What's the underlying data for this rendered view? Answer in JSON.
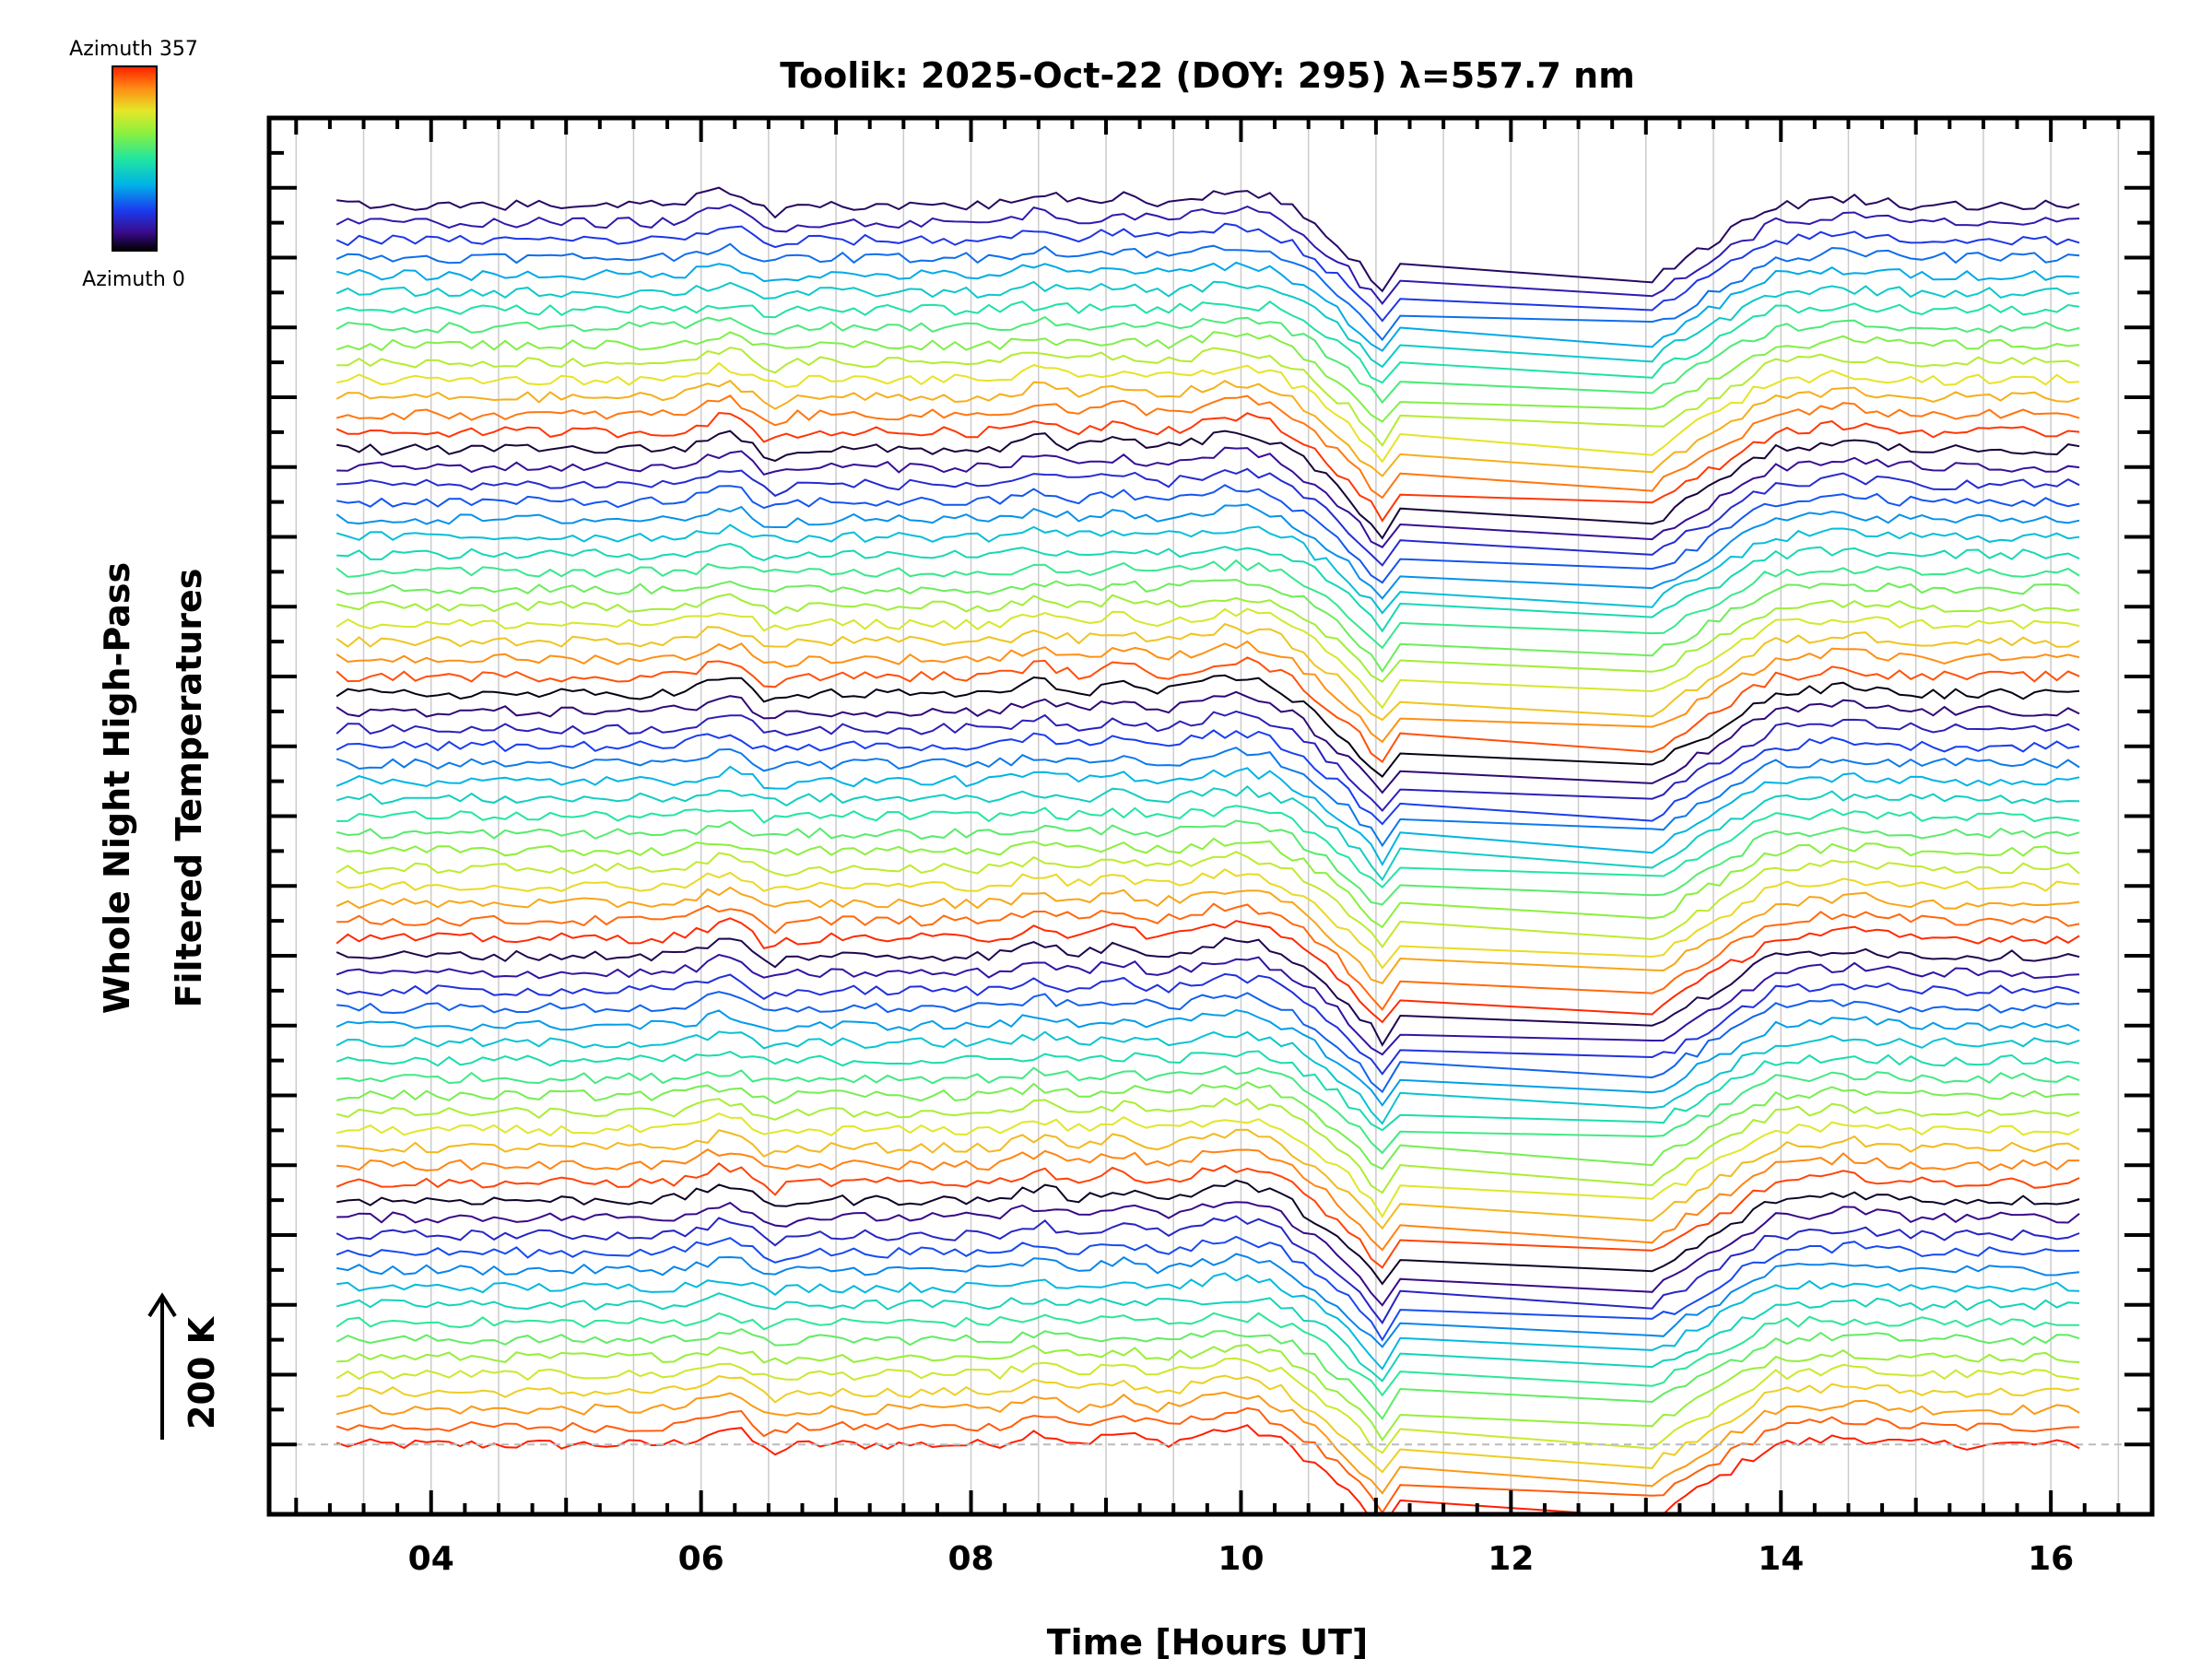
{
  "chart_data": {
    "type": "line",
    "title": "Toolik: 2025-Oct-22 (DOY: 295) λ=557.7 nm",
    "xlabel": "Time [Hours UT]",
    "ylabel_line1": "Whole Night High-Pass",
    "ylabel_line2": "Filtered Temperatures",
    "scale_label": "200 K",
    "xlim": [
      2.8,
      16.75
    ],
    "x_ticks": [
      4,
      6,
      8,
      10,
      12,
      14,
      16
    ],
    "x_tick_labels": [
      "04",
      "06",
      "08",
      "10",
      "12",
      "14",
      "16"
    ],
    "ylim": [
      -400,
      7600
    ],
    "y_spacing_K": 100,
    "n_series": 72,
    "colorbar": {
      "label_top": "Azimuth 357",
      "label_bottom": "Azimuth 0",
      "min": 0,
      "max": 357,
      "colormap": "rainbow"
    },
    "time_start": 3.3,
    "time_end": 16.25,
    "gap_start": 11.1,
    "gap_end": 13.0,
    "colors": {
      "axis": "#000000",
      "grid": "#cccccc",
      "baseline": "#bbbbbb"
    }
  }
}
